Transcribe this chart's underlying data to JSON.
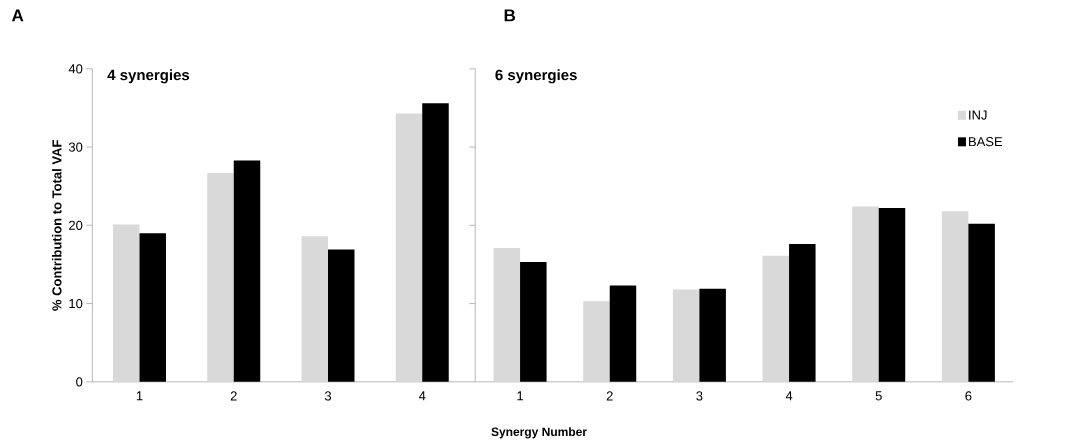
{
  "chart_data": [
    {
      "type": "bar",
      "title": "4 synergies",
      "ylabel": "% Contribution to Total VAF",
      "xlabel": "Synergy Number",
      "annotations": [
        "A"
      ],
      "categories": [
        "1",
        "2",
        "3",
        "4"
      ],
      "series": [
        {
          "color": "#d9d9d9",
          "values": [
            20.1,
            26.7,
            18.6,
            34.3
          ]
        },
        {
          "color": "#000000",
          "values": [
            19.0,
            28.3,
            16.9,
            35.6
          ]
        }
      ],
      "ylim": [
        0,
        40
      ],
      "yticks": [
        0,
        10,
        20,
        30,
        40
      ],
      "legend": false
    },
    {
      "type": "bar",
      "title": "6 synergies",
      "annotations": [
        "B"
      ],
      "categories": [
        "1",
        "2",
        "3",
        "4",
        "5",
        "6"
      ],
      "series": [
        {
          "name": "INJ",
          "color": "#d9d9d9",
          "values": [
            17.1,
            10.3,
            11.8,
            16.1,
            22.4,
            21.8
          ]
        },
        {
          "name": "BASE",
          "color": "#000000",
          "values": [
            15.3,
            12.3,
            11.9,
            17.6,
            22.2,
            20.2
          ]
        }
      ],
      "ylim": [
        0,
        40
      ],
      "yticks": [
        0,
        10,
        20,
        30,
        40
      ],
      "tick_labels": "x",
      "legend": "top right"
    }
  ]
}
